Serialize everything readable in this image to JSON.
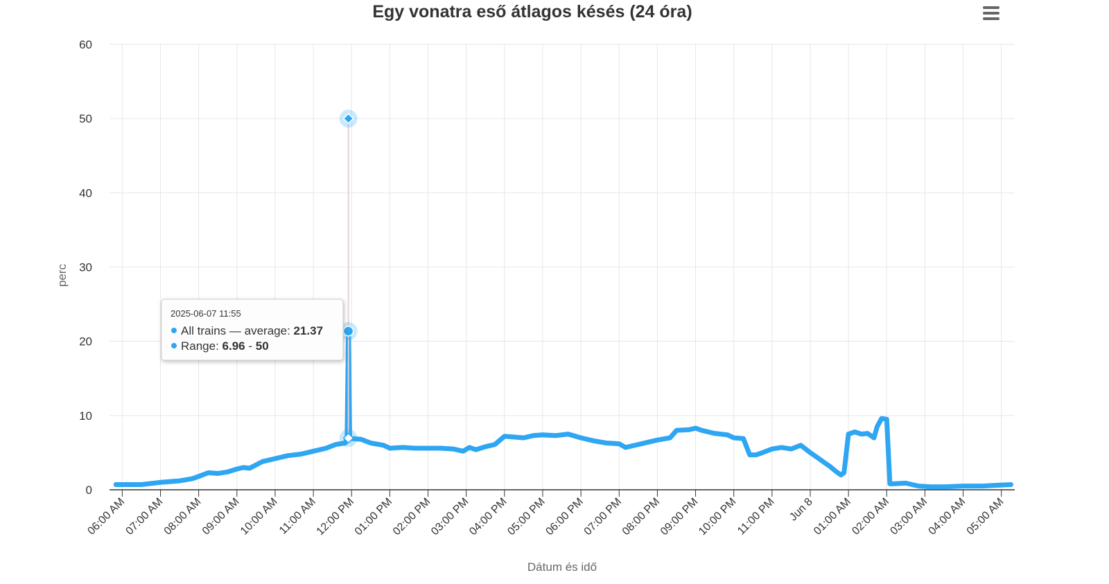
{
  "colors": {
    "series": "#2ea6f2",
    "grid": "#e6e6e6",
    "axis_line": "#333333",
    "range_stem": "#e8cfd6",
    "text": "#333333",
    "muted_text": "#666666"
  },
  "menu_icon": "hamburger-menu-icon",
  "tooltip": {
    "date": "2025-06-07 11:55",
    "avg_label": "All trains — average: ",
    "avg_value": "21.37",
    "range_label": "Range: ",
    "range_low": "6.96",
    "range_sep": " - ",
    "range_high": "50"
  },
  "chart_data": {
    "type": "line",
    "title": "Egy vonatra eső átlagos késés (24 óra)",
    "xlabel": "Dátum és idő",
    "ylabel": "perc",
    "ylim": [
      0,
      60
    ],
    "yticks": [
      0,
      10,
      20,
      30,
      40,
      50,
      60
    ],
    "xlim": [
      "2025-06-07 05:40",
      "2025-06-08 05:21"
    ],
    "grid": true,
    "legend": "none",
    "x_ticks": [
      {
        "t": "2025-06-07 06:00",
        "label": "06:00 AM"
      },
      {
        "t": "2025-06-07 07:00",
        "label": "07:00 AM"
      },
      {
        "t": "2025-06-07 08:00",
        "label": "08:00 AM"
      },
      {
        "t": "2025-06-07 09:00",
        "label": "09:00 AM"
      },
      {
        "t": "2025-06-07 10:00",
        "label": "10:00 AM"
      },
      {
        "t": "2025-06-07 11:00",
        "label": "11:00 AM"
      },
      {
        "t": "2025-06-07 12:00",
        "label": "12:00 PM"
      },
      {
        "t": "2025-06-07 13:00",
        "label": "01:00 PM"
      },
      {
        "t": "2025-06-07 14:00",
        "label": "02:00 PM"
      },
      {
        "t": "2025-06-07 15:00",
        "label": "03:00 PM"
      },
      {
        "t": "2025-06-07 16:00",
        "label": "04:00 PM"
      },
      {
        "t": "2025-06-07 17:00",
        "label": "05:00 PM"
      },
      {
        "t": "2025-06-07 18:00",
        "label": "06:00 PM"
      },
      {
        "t": "2025-06-07 19:00",
        "label": "07:00 PM"
      },
      {
        "t": "2025-06-07 20:00",
        "label": "08:00 PM"
      },
      {
        "t": "2025-06-07 21:00",
        "label": "09:00 PM"
      },
      {
        "t": "2025-06-07 22:00",
        "label": "10:00 PM"
      },
      {
        "t": "2025-06-07 23:00",
        "label": "11:00 PM"
      },
      {
        "t": "2025-06-08 00:00",
        "label": "Jun 8"
      },
      {
        "t": "2025-06-08 01:00",
        "label": "01:00 AM"
      },
      {
        "t": "2025-06-08 02:00",
        "label": "02:00 AM"
      },
      {
        "t": "2025-06-08 03:00",
        "label": "03:00 AM"
      },
      {
        "t": "2025-06-08 04:00",
        "label": "04:00 AM"
      },
      {
        "t": "2025-06-08 05:00",
        "label": "05:00 AM"
      }
    ],
    "series": [
      {
        "name": "All trains — average",
        "x": [
          "2025-06-07 05:50",
          "2025-06-07 06:10",
          "2025-06-07 06:30",
          "2025-06-07 07:00",
          "2025-06-07 07:30",
          "2025-06-07 07:50",
          "2025-06-07 08:00",
          "2025-06-07 08:15",
          "2025-06-07 08:30",
          "2025-06-07 08:45",
          "2025-06-07 09:00",
          "2025-06-07 09:10",
          "2025-06-07 09:20",
          "2025-06-07 09:40",
          "2025-06-07 10:00",
          "2025-06-07 10:20",
          "2025-06-07 10:40",
          "2025-06-07 11:00",
          "2025-06-07 11:20",
          "2025-06-07 11:35",
          "2025-06-07 11:50",
          "2025-06-07 11:53",
          "2025-06-07 11:55",
          "2025-06-07 11:57",
          "2025-06-07 12:00",
          "2025-06-07 12:15",
          "2025-06-07 12:30",
          "2025-06-07 12:50",
          "2025-06-07 13:00",
          "2025-06-07 13:20",
          "2025-06-07 13:40",
          "2025-06-07 14:00",
          "2025-06-07 14:20",
          "2025-06-07 14:40",
          "2025-06-07 14:55",
          "2025-06-07 15:05",
          "2025-06-07 15:15",
          "2025-06-07 15:30",
          "2025-06-07 15:45",
          "2025-06-07 16:00",
          "2025-06-07 16:15",
          "2025-06-07 16:30",
          "2025-06-07 16:45",
          "2025-06-07 17:00",
          "2025-06-07 17:20",
          "2025-06-07 17:40",
          "2025-06-07 18:00",
          "2025-06-07 18:20",
          "2025-06-07 18:40",
          "2025-06-07 19:00",
          "2025-06-07 19:10",
          "2025-06-07 19:30",
          "2025-06-07 19:50",
          "2025-06-07 20:00",
          "2025-06-07 20:20",
          "2025-06-07 20:30",
          "2025-06-07 20:50",
          "2025-06-07 21:00",
          "2025-06-07 21:10",
          "2025-06-07 21:30",
          "2025-06-07 21:50",
          "2025-06-07 22:00",
          "2025-06-07 22:15",
          "2025-06-07 22:25",
          "2025-06-07 22:35",
          "2025-06-07 22:45",
          "2025-06-07 23:00",
          "2025-06-07 23:15",
          "2025-06-07 23:30",
          "2025-06-07 23:45",
          "2025-06-08 00:00",
          "2025-06-08 00:10",
          "2025-06-08 00:20",
          "2025-06-08 00:30",
          "2025-06-08 00:40",
          "2025-06-08 00:48",
          "2025-06-08 00:53",
          "2025-06-08 01:00",
          "2025-06-08 01:10",
          "2025-06-08 01:20",
          "2025-06-08 01:30",
          "2025-06-08 01:40",
          "2025-06-08 01:45",
          "2025-06-08 01:52",
          "2025-06-08 02:00",
          "2025-06-08 02:05",
          "2025-06-08 02:10",
          "2025-06-08 02:30",
          "2025-06-08 02:50",
          "2025-06-08 03:10",
          "2025-06-08 03:30",
          "2025-06-08 04:00",
          "2025-06-08 04:30",
          "2025-06-08 04:50",
          "2025-06-08 05:15"
        ],
        "values": [
          0.7,
          0.7,
          0.7,
          1.0,
          1.2,
          1.5,
          1.8,
          2.3,
          2.2,
          2.4,
          2.8,
          3.0,
          2.9,
          3.8,
          4.2,
          4.6,
          4.8,
          5.2,
          5.6,
          6.1,
          6.3,
          7.0,
          21.37,
          7.0,
          6.9,
          6.8,
          6.3,
          6.0,
          5.6,
          5.7,
          5.6,
          5.6,
          5.6,
          5.5,
          5.2,
          5.7,
          5.4,
          5.8,
          6.1,
          7.2,
          7.1,
          7.0,
          7.3,
          7.4,
          7.3,
          7.5,
          7.0,
          6.6,
          6.3,
          6.2,
          5.7,
          6.1,
          6.5,
          6.7,
          7.0,
          8.0,
          8.1,
          8.3,
          8.0,
          7.6,
          7.4,
          7.0,
          6.9,
          4.7,
          4.7,
          5.0,
          5.5,
          5.7,
          5.5,
          6.0,
          5.0,
          4.4,
          3.8,
          3.2,
          2.5,
          2.0,
          2.3,
          7.5,
          7.8,
          7.5,
          7.6,
          7.0,
          8.5,
          9.6,
          9.5,
          0.8,
          0.8,
          0.9,
          0.5,
          0.4,
          0.4,
          0.5,
          0.5,
          0.6,
          0.7
        ]
      }
    ],
    "highlight": {
      "x": "2025-06-07 11:55",
      "average": 21.37,
      "range_low": 6.96,
      "range_high": 50
    }
  }
}
